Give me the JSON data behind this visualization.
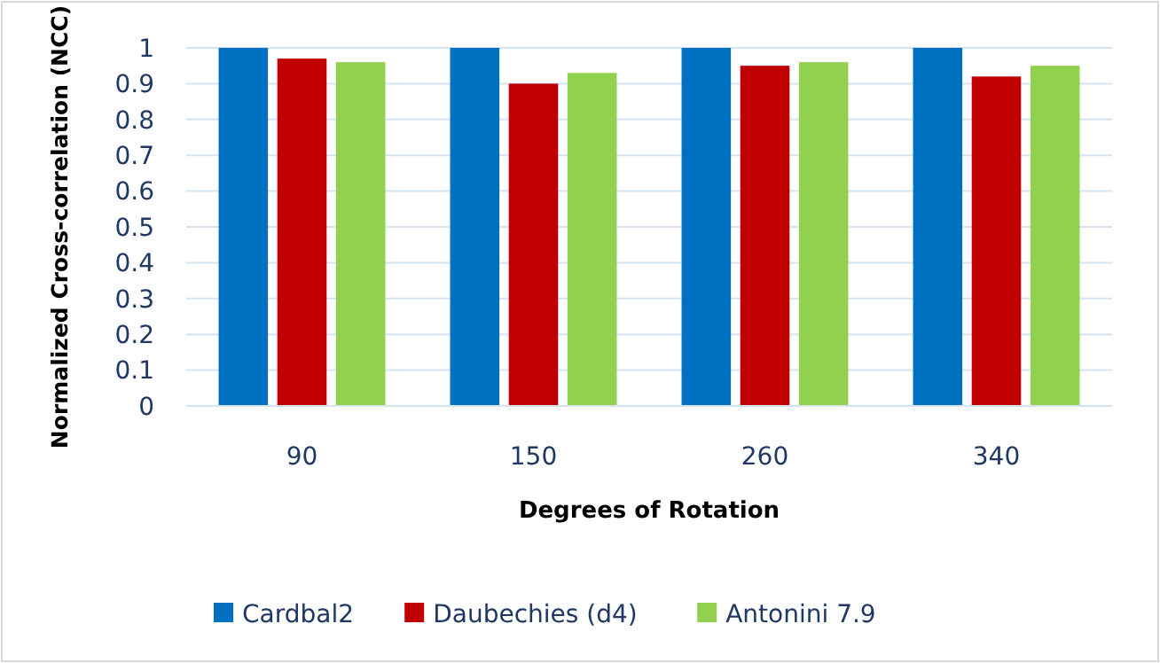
{
  "chart_data": {
    "type": "bar",
    "xlabel": "Degrees of Rotation",
    "ylabel": "Normalized Cross-correlation (NCC)",
    "categories": [
      "90",
      "150",
      "260",
      "340"
    ],
    "series": [
      {
        "name": "Cardbal2",
        "color": "#0070c0",
        "values": [
          1,
          1,
          1,
          1
        ]
      },
      {
        "name": "Daubechies (d4)",
        "color": "#c00000",
        "values": [
          0.97,
          0.9,
          0.95,
          0.92
        ]
      },
      {
        "name": "Antonini 7.9",
        "color": "#92d050",
        "values": [
          0.96,
          0.93,
          0.96,
          0.95
        ]
      }
    ],
    "ylim": [
      0,
      1
    ],
    "yticks": [
      0,
      0.1,
      0.2,
      0.3,
      0.4,
      0.5,
      0.6,
      0.7,
      0.8,
      0.9,
      1
    ],
    "grid": "y",
    "legend": "bottom"
  }
}
